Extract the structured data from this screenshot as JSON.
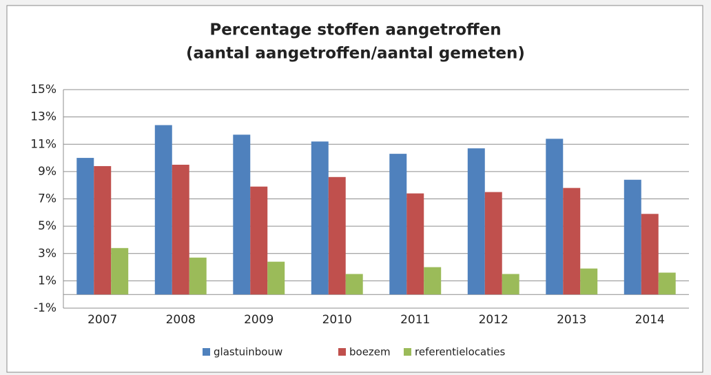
{
  "chart_data": {
    "type": "bar",
    "title": [
      "Percentage stoffen aangetroffen",
      "(aantal aangetroffen/aantal gemeten)"
    ],
    "categories": [
      "2007",
      "2008",
      "2009",
      "2010",
      "2011",
      "2012",
      "2013",
      "2014"
    ],
    "series": [
      {
        "name": "glastuinbouw",
        "color": "#4f81bd",
        "values": [
          10.0,
          12.4,
          11.7,
          11.2,
          10.3,
          10.7,
          11.4,
          8.4
        ]
      },
      {
        "name": "boezem",
        "color": "#c0504d",
        "values": [
          9.4,
          9.5,
          7.9,
          8.6,
          7.4,
          7.5,
          7.8,
          5.9
        ]
      },
      {
        "name": "referentielocaties",
        "color": "#9bbb59",
        "values": [
          3.4,
          2.7,
          2.4,
          1.5,
          2.0,
          1.5,
          1.9,
          1.6
        ]
      }
    ],
    "ylim": [
      -1,
      15
    ],
    "yticks": [
      {
        "value": -1,
        "label": "-1%"
      },
      {
        "value": 1,
        "label": "1%"
      },
      {
        "value": 3,
        "label": "3%"
      },
      {
        "value": 5,
        "label": "5%"
      },
      {
        "value": 7,
        "label": "7%"
      },
      {
        "value": 9,
        "label": "9%"
      },
      {
        "value": 11,
        "label": "11%"
      },
      {
        "value": 13,
        "label": "13%"
      },
      {
        "value": 15,
        "label": "15%"
      }
    ],
    "grid": true,
    "legend": "bottom"
  }
}
